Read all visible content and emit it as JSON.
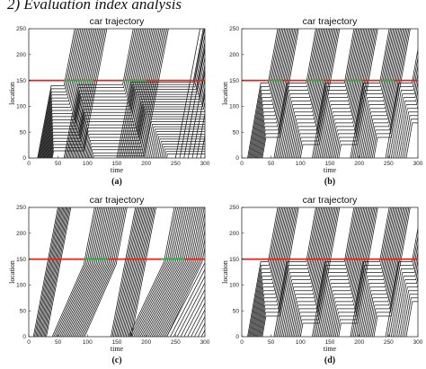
{
  "page": {
    "heading": "2) Evaluation index analysis"
  },
  "chart_data": [
    {
      "type": "line",
      "panel_label": "(a)",
      "title": "car trajectory",
      "xlabel": "time",
      "ylabel": "location",
      "xlim": [
        0,
        300
      ],
      "ylim": [
        0,
        250
      ],
      "xticks": [
        0,
        50,
        100,
        150,
        200,
        250,
        300
      ],
      "yticks": [
        0,
        50,
        100,
        150,
        200,
        250
      ],
      "grid": false,
      "reference_lines": [
        {
          "y": 150,
          "x_from": 0,
          "x_to": 300,
          "color": "#e0231b"
        },
        {
          "y": 150,
          "x_from": 60,
          "x_to": 110,
          "color": "#2fa84f"
        },
        {
          "y": 150,
          "x_from": 160,
          "x_to": 200,
          "color": "#2fa84f"
        }
      ],
      "trajectory_groups": [
        {
          "t_start": [
            15,
            40
          ],
          "count": 22,
          "speed": 6.0,
          "stop_y": 140,
          "stop_spacing": 6.0,
          "stop_until": 60,
          "release_gap": 1.6
        },
        {
          "t_start": [
            60,
            110
          ],
          "count": 24,
          "speed": 6.0,
          "stop_y": 142,
          "stop_spacing": 6.0,
          "stop_until": 160,
          "release_gap": 1.6
        },
        {
          "t_start": [
            150,
            235
          ],
          "count": 30,
          "speed": 6.0,
          "stop_y": 147,
          "stop_spacing": 4.8,
          "stop_until": 280,
          "release_gap": 1.6
        },
        {
          "t_start": [
            250,
            300
          ],
          "count": 8,
          "speed": 6.0,
          "stop_y": 0,
          "stop_spacing": 0,
          "stop_until": 0,
          "release_gap": 0
        }
      ]
    },
    {
      "type": "line",
      "panel_label": "(b)",
      "title": "car trajectory",
      "xlabel": "time",
      "ylabel": "location",
      "xlim": [
        0,
        300
      ],
      "ylim": [
        0,
        250
      ],
      "xticks": [
        0,
        50,
        100,
        150,
        200,
        250,
        300
      ],
      "yticks": [
        0,
        50,
        100,
        150,
        200,
        250
      ],
      "grid": false,
      "reference_lines": [
        {
          "y": 150,
          "x_from": 0,
          "x_to": 300,
          "color": "#e0231b"
        },
        {
          "y": 150,
          "x_from": 45,
          "x_to": 70,
          "color": "#2fa84f"
        },
        {
          "y": 150,
          "x_from": 110,
          "x_to": 140,
          "color": "#2fa84f"
        },
        {
          "y": 150,
          "x_from": 175,
          "x_to": 205,
          "color": "#2fa84f"
        },
        {
          "y": 150,
          "x_from": 235,
          "x_to": 260,
          "color": "#2fa84f"
        }
      ],
      "trajectory_groups": [
        {
          "t_start": [
            10,
            35
          ],
          "count": 16,
          "speed": 6.5,
          "stop_y": 145,
          "stop_spacing": 7.0,
          "stop_until": 45,
          "release_gap": 1.3
        },
        {
          "t_start": [
            55,
            100
          ],
          "count": 18,
          "speed": 6.5,
          "stop_y": 145,
          "stop_spacing": 7.0,
          "stop_until": 110,
          "release_gap": 1.3
        },
        {
          "t_start": [
            120,
            165
          ],
          "count": 18,
          "speed": 6.5,
          "stop_y": 145,
          "stop_spacing": 7.0,
          "stop_until": 175,
          "release_gap": 1.3
        },
        {
          "t_start": [
            185,
            225
          ],
          "count": 16,
          "speed": 6.5,
          "stop_y": 145,
          "stop_spacing": 7.0,
          "stop_until": 235,
          "release_gap": 1.3
        },
        {
          "t_start": [
            245,
            280
          ],
          "count": 12,
          "speed": 6.5,
          "stop_y": 145,
          "stop_spacing": 7.0,
          "stop_until": 290,
          "release_gap": 1.3
        }
      ]
    },
    {
      "type": "line",
      "panel_label": "(c)",
      "title": "car trajectory",
      "xlabel": "time",
      "ylabel": "location",
      "xlim": [
        0,
        300
      ],
      "ylim": [
        0,
        250
      ],
      "xticks": [
        0,
        50,
        100,
        150,
        200,
        250,
        300
      ],
      "yticks": [
        0,
        50,
        100,
        150,
        200,
        250
      ],
      "grid": false,
      "reference_lines": [
        {
          "y": 150,
          "x_from": 0,
          "x_to": 300,
          "color": "#e0231b"
        },
        {
          "y": 150,
          "x_from": 95,
          "x_to": 135,
          "color": "#2fa84f"
        },
        {
          "y": 150,
          "x_from": 225,
          "x_to": 265,
          "color": "#2fa84f"
        }
      ],
      "trajectory_groups": [
        {
          "t_start": [
            8,
            30
          ],
          "count": 12,
          "speed": 6.0,
          "stop_y": 0,
          "stop_spacing": 0,
          "stop_until": 0,
          "release_gap": 0
        },
        {
          "t_start": [
            40,
            95
          ],
          "count": 22,
          "speed": 2.6,
          "stop_y": 0,
          "stop_spacing": 0,
          "stop_until": 0,
          "release_gap": 0,
          "fast_after": 140,
          "fast_speed": 6.0
        },
        {
          "t_start": [
            140,
            175
          ],
          "count": 16,
          "speed": 6.0,
          "stop_y": 0,
          "stop_spacing": 0,
          "stop_until": 0,
          "release_gap": 0
        },
        {
          "t_start": [
            170,
            235
          ],
          "count": 24,
          "speed": 2.4,
          "stop_y": 0,
          "stop_spacing": 0,
          "stop_until": 0,
          "release_gap": 0,
          "fast_after": 145,
          "fast_speed": 6.0
        },
        {
          "t_start": [
            235,
            300
          ],
          "count": 12,
          "speed": 2.2,
          "stop_y": 0,
          "stop_spacing": 0,
          "stop_until": 0,
          "release_gap": 0
        }
      ]
    },
    {
      "type": "line",
      "panel_label": "(d)",
      "title": "car trajectory",
      "xlabel": "time",
      "ylabel": "location",
      "xlim": [
        0,
        300
      ],
      "ylim": [
        0,
        250
      ],
      "xticks": [
        0,
        50,
        100,
        150,
        200,
        250,
        300
      ],
      "yticks": [
        0,
        50,
        100,
        150,
        200,
        250
      ],
      "grid": false,
      "reference_lines": [
        {
          "y": 150,
          "x_from": 0,
          "x_to": 300,
          "color": "#e0231b"
        }
      ],
      "trajectory_groups": [
        {
          "t_start": [
            10,
            35
          ],
          "count": 16,
          "speed": 6.5,
          "stop_y": 145,
          "stop_spacing": 7.0,
          "stop_until": 45,
          "release_gap": 1.3
        },
        {
          "t_start": [
            55,
            100
          ],
          "count": 18,
          "speed": 6.5,
          "stop_y": 145,
          "stop_spacing": 7.0,
          "stop_until": 110,
          "release_gap": 1.3
        },
        {
          "t_start": [
            120,
            165
          ],
          "count": 18,
          "speed": 6.5,
          "stop_y": 145,
          "stop_spacing": 7.0,
          "stop_until": 175,
          "release_gap": 1.3
        },
        {
          "t_start": [
            185,
            225
          ],
          "count": 16,
          "speed": 6.5,
          "stop_y": 145,
          "stop_spacing": 7.0,
          "stop_until": 235,
          "release_gap": 1.3
        },
        {
          "t_start": [
            245,
            280
          ],
          "count": 12,
          "speed": 6.5,
          "stop_y": 145,
          "stop_spacing": 7.0,
          "stop_until": 290,
          "release_gap": 1.3
        }
      ]
    }
  ]
}
